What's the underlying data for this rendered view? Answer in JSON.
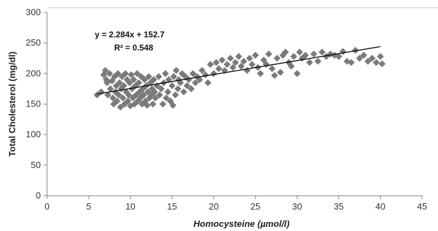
{
  "chart_data": {
    "type": "scatter",
    "title": "",
    "xlabel": "Homocysteine (µmol/l)",
    "ylabel": "Total Cholesterol  (mg/dl)",
    "xlim": [
      0,
      45
    ],
    "ylim": [
      0,
      300
    ],
    "xticks": [
      "0",
      "5",
      "10",
      "15",
      "20",
      "25",
      "30",
      "35",
      "40",
      "45"
    ],
    "yticks": [
      "0",
      "50",
      "100",
      "150",
      "200",
      "250",
      "300"
    ],
    "grid": false,
    "legend": "none",
    "marker": "diamond",
    "marker_color": "#7a7a7a",
    "trendline": {
      "slope": 2.284,
      "intercept": 152.7,
      "x_range": [
        6,
        40
      ],
      "color": "#000000",
      "equation_label": "y = 2.284x + 152.7",
      "r2_label": "R² = 0.548"
    },
    "points": [
      [
        6.0,
        165
      ],
      [
        6.5,
        170
      ],
      [
        6.8,
        198
      ],
      [
        7.0,
        205
      ],
      [
        7.1,
        190
      ],
      [
        7.2,
        185
      ],
      [
        7.3,
        165
      ],
      [
        7.5,
        200
      ],
      [
        7.6,
        175
      ],
      [
        7.8,
        188
      ],
      [
        7.9,
        160
      ],
      [
        8.0,
        150
      ],
      [
        8.1,
        195
      ],
      [
        8.2,
        170
      ],
      [
        8.3,
        180
      ],
      [
        8.4,
        155
      ],
      [
        8.5,
        200
      ],
      [
        8.6,
        165
      ],
      [
        8.7,
        185
      ],
      [
        8.8,
        145
      ],
      [
        8.9,
        175
      ],
      [
        9.0,
        195
      ],
      [
        9.1,
        160
      ],
      [
        9.2,
        180
      ],
      [
        9.3,
        150
      ],
      [
        9.4,
        200
      ],
      [
        9.5,
        170
      ],
      [
        9.6,
        190
      ],
      [
        9.7,
        155
      ],
      [
        9.8,
        165
      ],
      [
        9.9,
        185
      ],
      [
        10.0,
        147
      ],
      [
        10.1,
        198
      ],
      [
        10.2,
        175
      ],
      [
        10.3,
        160
      ],
      [
        10.4,
        190
      ],
      [
        10.5,
        150
      ],
      [
        10.6,
        180
      ],
      [
        10.7,
        165
      ],
      [
        10.8,
        200
      ],
      [
        10.9,
        155
      ],
      [
        11.0,
        185
      ],
      [
        11.1,
        170
      ],
      [
        11.2,
        160
      ],
      [
        11.3,
        195
      ],
      [
        11.4,
        150
      ],
      [
        11.5,
        175
      ],
      [
        11.6,
        165
      ],
      [
        11.7,
        190
      ],
      [
        11.8,
        155
      ],
      [
        11.9,
        180
      ],
      [
        12.0,
        148
      ],
      [
        12.1,
        170
      ],
      [
        12.2,
        195
      ],
      [
        12.3,
        160
      ],
      [
        12.4,
        185
      ],
      [
        12.5,
        165
      ],
      [
        12.6,
        175
      ],
      [
        12.7,
        150
      ],
      [
        12.8,
        190
      ],
      [
        12.9,
        170
      ],
      [
        13.0,
        160
      ],
      [
        13.2,
        180
      ],
      [
        13.4,
        195
      ],
      [
        13.5,
        165
      ],
      [
        13.7,
        175
      ],
      [
        13.9,
        150
      ],
      [
        14.0,
        185
      ],
      [
        14.2,
        200
      ],
      [
        14.3,
        160
      ],
      [
        14.5,
        170
      ],
      [
        14.6,
        190
      ],
      [
        14.8,
        155
      ],
      [
        15.0,
        180
      ],
      [
        15.1,
        148
      ],
      [
        15.2,
        195
      ],
      [
        15.4,
        165
      ],
      [
        15.5,
        205
      ],
      [
        15.7,
        175
      ],
      [
        15.8,
        190
      ],
      [
        16.0,
        185
      ],
      [
        16.2,
        200
      ],
      [
        16.4,
        170
      ],
      [
        16.6,
        195
      ],
      [
        16.8,
        180
      ],
      [
        17.0,
        190
      ],
      [
        17.3,
        175
      ],
      [
        17.5,
        200
      ],
      [
        17.8,
        185
      ],
      [
        18.0,
        195
      ],
      [
        18.3,
        190
      ],
      [
        18.6,
        205
      ],
      [
        19.0,
        198
      ],
      [
        19.3,
        185
      ],
      [
        19.6,
        215
      ],
      [
        20.0,
        200
      ],
      [
        20.3,
        218
      ],
      [
        20.6,
        208
      ],
      [
        21.0,
        222
      ],
      [
        21.3,
        205
      ],
      [
        21.6,
        215
      ],
      [
        22.0,
        225
      ],
      [
        22.3,
        210
      ],
      [
        22.6,
        218
      ],
      [
        23.0,
        228
      ],
      [
        23.3,
        212
      ],
      [
        23.6,
        220
      ],
      [
        24.0,
        205
      ],
      [
        24.3,
        225
      ],
      [
        24.6,
        215
      ],
      [
        25.0,
        230
      ],
      [
        25.3,
        210
      ],
      [
        25.6,
        200
      ],
      [
        26.0,
        222
      ],
      [
        26.3,
        215
      ],
      [
        26.6,
        232
      ],
      [
        27.0,
        208
      ],
      [
        27.3,
        197
      ],
      [
        27.6,
        225
      ],
      [
        28.0,
        202
      ],
      [
        28.3,
        230
      ],
      [
        28.6,
        235
      ],
      [
        29.0,
        218
      ],
      [
        29.3,
        212
      ],
      [
        29.6,
        228
      ],
      [
        30.0,
        200
      ],
      [
        30.3,
        235
      ],
      [
        30.6,
        225
      ],
      [
        31.0,
        230
      ],
      [
        31.5,
        218
      ],
      [
        32.0,
        232
      ],
      [
        32.5,
        220
      ],
      [
        33.0,
        235
      ],
      [
        33.5,
        228
      ],
      [
        34.0,
        232
      ],
      [
        34.5,
        230
      ],
      [
        35.0,
        228
      ],
      [
        35.5,
        236
      ],
      [
        36.0,
        220
      ],
      [
        36.5,
        218
      ],
      [
        37.0,
        238
      ],
      [
        37.5,
        225
      ],
      [
        38.0,
        230
      ],
      [
        38.5,
        220
      ],
      [
        39.0,
        225
      ],
      [
        39.5,
        218
      ],
      [
        40.0,
        228
      ],
      [
        40.2,
        216
      ]
    ]
  }
}
